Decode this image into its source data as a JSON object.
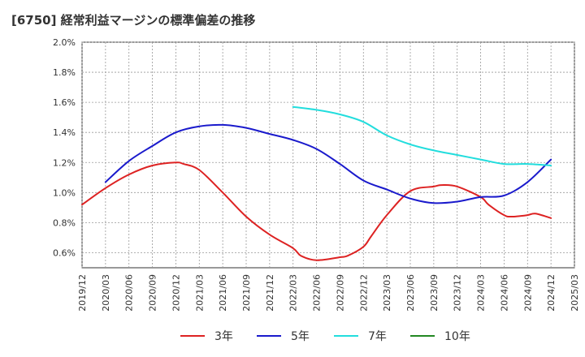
{
  "chart_data": {
    "type": "line",
    "title": "[6750]  経常利益マージンの標準偏差の推移",
    "xlabel": "",
    "ylabel": "",
    "y_unit": "%",
    "ylim": [
      0.5,
      2.0
    ],
    "y_ticks": [
      0.6,
      0.8,
      1.0,
      1.2,
      1.4,
      1.6,
      1.8,
      2.0
    ],
    "y_tick_labels": [
      "0.6%",
      "0.8%",
      "1.0%",
      "1.2%",
      "1.4%",
      "1.6%",
      "1.8%",
      "2.0%"
    ],
    "x_tick_labels": [
      "2019/12",
      "2020/03",
      "2020/06",
      "2020/09",
      "2020/12",
      "2021/03",
      "2021/06",
      "2021/09",
      "2021/12",
      "2022/03",
      "2022/06",
      "2022/09",
      "2022/12",
      "2023/03",
      "2023/06",
      "2023/09",
      "2023/12",
      "2024/03",
      "2024/06",
      "2024/09",
      "2024/12",
      "2025/03"
    ],
    "grid": true,
    "legend_position": "bottom",
    "series": [
      {
        "name": "3年",
        "color": "#dd2222",
        "x": [
          "2019/12",
          "2020/03",
          "2020/06",
          "2020/09",
          "2020/12",
          "2021/01",
          "2021/03",
          "2021/06",
          "2021/09",
          "2021/12",
          "2022/03",
          "2022/04",
          "2022/06",
          "2022/09",
          "2022/10",
          "2022/12",
          "2023/01",
          "2023/03",
          "2023/06",
          "2023/09",
          "2023/10",
          "2023/12",
          "2024/03",
          "2024/04",
          "2024/06",
          "2024/07",
          "2024/09",
          "2024/10",
          "2024/12"
        ],
        "values": [
          0.92,
          1.03,
          1.12,
          1.18,
          1.2,
          1.19,
          1.15,
          1.0,
          0.84,
          0.72,
          0.63,
          0.58,
          0.55,
          0.57,
          0.58,
          0.64,
          0.71,
          0.85,
          1.01,
          1.04,
          1.05,
          1.04,
          0.97,
          0.92,
          0.85,
          0.84,
          0.85,
          0.86,
          0.83
        ]
      },
      {
        "name": "5年",
        "color": "#1a1acc",
        "x": [
          "2020/03",
          "2020/06",
          "2020/09",
          "2020/12",
          "2021/03",
          "2021/06",
          "2021/09",
          "2021/12",
          "2022/03",
          "2022/06",
          "2022/09",
          "2022/12",
          "2023/03",
          "2023/06",
          "2023/09",
          "2023/12",
          "2024/03",
          "2024/06",
          "2024/09",
          "2024/12"
        ],
        "values": [
          1.07,
          1.21,
          1.31,
          1.4,
          1.44,
          1.45,
          1.43,
          1.39,
          1.35,
          1.29,
          1.19,
          1.08,
          1.02,
          0.96,
          0.93,
          0.94,
          0.97,
          0.98,
          1.07,
          1.22
        ]
      },
      {
        "name": "7年",
        "color": "#22dddd",
        "x": [
          "2022/03",
          "2022/06",
          "2022/09",
          "2022/12",
          "2023/03",
          "2023/06",
          "2023/09",
          "2023/12",
          "2024/03",
          "2024/06",
          "2024/09",
          "2024/12"
        ],
        "values": [
          1.57,
          1.55,
          1.52,
          1.47,
          1.38,
          1.32,
          1.28,
          1.25,
          1.22,
          1.19,
          1.19,
          1.18
        ]
      },
      {
        "name": "10年",
        "color": "#228822",
        "x": [],
        "values": []
      }
    ]
  }
}
